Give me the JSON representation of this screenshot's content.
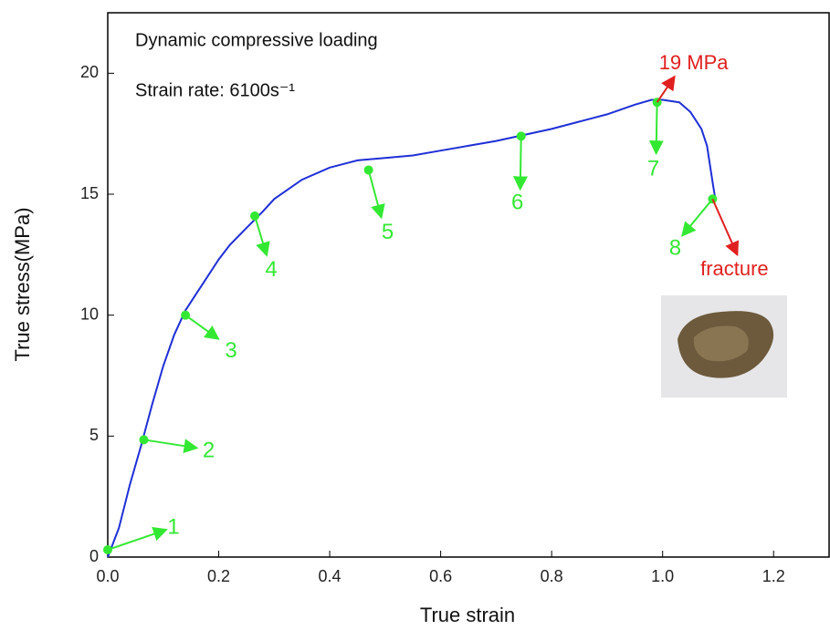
{
  "chart_data": {
    "type": "line",
    "title": "Dynamic compressive loading",
    "subtitle": "Strain rate: 6100s⁻¹",
    "x_label": "True strain",
    "y_label": "True stress(MPa)",
    "xlim": [
      0,
      1.3
    ],
    "ylim": [
      0,
      22.5
    ],
    "xticks": [
      {
        "value": 0,
        "label": "0.0"
      },
      0.2,
      0.4,
      0.6,
      0.8,
      {
        "value": 1,
        "label": "1.0"
      },
      1.2
    ],
    "yticks": [
      0,
      5,
      10,
      15,
      20
    ],
    "series": [
      {
        "color": "#1f2fd6",
        "x": [
          0,
          0.02,
          0.04,
          0.06,
          0.08,
          0.1,
          0.12,
          0.14,
          0.16,
          0.18,
          0.2,
          0.22,
          0.25,
          0.28,
          0.3,
          0.35,
          0.4,
          0.45,
          0.5,
          0.55,
          0.6,
          0.65,
          0.7,
          0.75,
          0.8,
          0.85,
          0.9,
          0.95,
          0.98,
          1.0,
          1.03,
          1.05,
          1.07,
          1.08,
          1.09,
          1.095
        ],
        "values": [
          0,
          1.2,
          3,
          4.6,
          6.3,
          7.9,
          9.2,
          10.2,
          10.9,
          11.6,
          12.3,
          12.9,
          13.6,
          14.3,
          14.8,
          15.6,
          16.1,
          16.4,
          16.5,
          16.6,
          16.8,
          17.0,
          17.2,
          17.45,
          17.7,
          18.0,
          18.3,
          18.7,
          18.9,
          18.9,
          18.8,
          18.4,
          17.7,
          17.0,
          15.5,
          14.8
        ]
      }
    ],
    "points": {
      "color": "#33e833",
      "x": [
        0.0,
        0.065,
        0.14,
        0.265,
        0.47,
        0.745,
        0.99,
        1.09
      ],
      "values": [
        0.3,
        4.85,
        10.0,
        14.1,
        16.0,
        17.4,
        18.8,
        14.8
      ],
      "labels": [
        "1",
        "2",
        "3",
        "4",
        "5",
        "6",
        "7",
        "8"
      ]
    },
    "peak_label": "19 MPa",
    "fracture_label": "fracture",
    "annotation_color": "#e02020"
  }
}
